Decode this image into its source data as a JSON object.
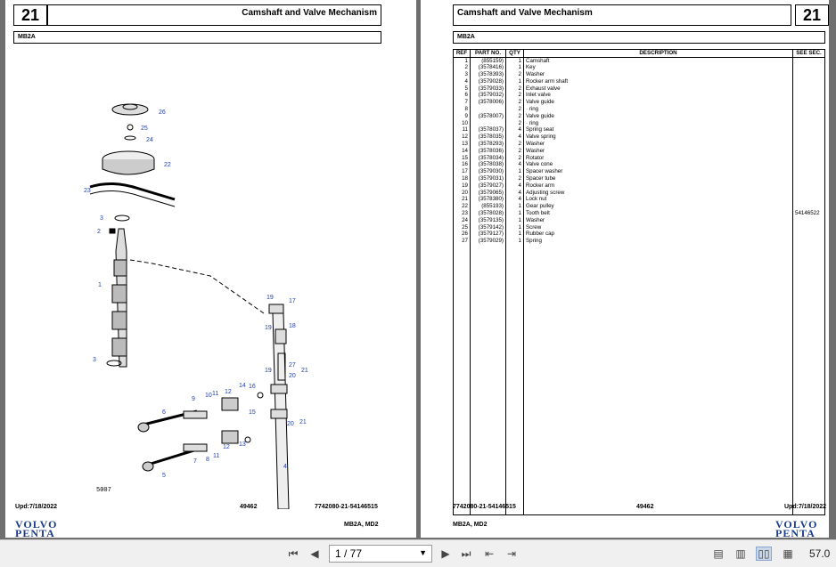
{
  "chapter_number": "21",
  "section_title": "Camshaft and Valve Mechanism",
  "model": "MB2A",
  "diagram": {
    "callouts": [
      "26",
      "25",
      "24",
      "22",
      "23",
      "3",
      "2",
      "1",
      "3",
      "17",
      "19",
      "18",
      "19",
      "27",
      "20",
      "21",
      "19",
      "16",
      "14",
      "12",
      "11",
      "10",
      "9",
      "6",
      "15",
      "20",
      "21",
      "13",
      "12",
      "11",
      "8",
      "7",
      "5",
      "4"
    ],
    "stamp": "5007"
  },
  "parts_table": {
    "headers": [
      "REF",
      "PART NO.",
      "QTY",
      "DESCRIPTION",
      "SEE SEC."
    ],
    "rows": [
      [
        "1",
        "(855159)",
        "1",
        "Camshaft",
        ""
      ],
      [
        "2",
        "(3578416)",
        "1",
        "Key",
        ""
      ],
      [
        "3",
        "(3578393)",
        "2",
        "Washer",
        ""
      ],
      [
        "4",
        "(3579028)",
        "1",
        "Rocker arm shaft",
        ""
      ],
      [
        "5",
        "(3579033)",
        "2",
        "Exhaust valve",
        ""
      ],
      [
        "6",
        "(3579032)",
        "2",
        "Inlet valve",
        ""
      ],
      [
        "7",
        "(3578006)",
        "2",
        "Valve guide",
        ""
      ],
      [
        "8",
        "",
        "2",
        "· ring",
        ""
      ],
      [
        "9",
        "(3578007)",
        "2",
        "Valve guide",
        ""
      ],
      [
        "10",
        "",
        "2",
        "· ring",
        ""
      ],
      [
        "11",
        "(3578037)",
        "4",
        "Spring seat",
        ""
      ],
      [
        "12",
        "(3578035)",
        "4",
        "Valve spring",
        ""
      ],
      [
        "13",
        "(3578293)",
        "2",
        "Washer",
        ""
      ],
      [
        "14",
        "(3578036)",
        "2",
        "Washer",
        ""
      ],
      [
        "15",
        "(3578034)",
        "2",
        "Rotator",
        ""
      ],
      [
        "16",
        "(3578038)",
        "4",
        "Valve cone",
        ""
      ],
      [
        "17",
        "(3579030)",
        "1",
        "Spacer washer",
        ""
      ],
      [
        "18",
        "(3579031)",
        "2",
        "Spacer tube",
        ""
      ],
      [
        "19",
        "(3579027)",
        "4",
        "Rocker arm",
        ""
      ],
      [
        "20",
        "(3579065)",
        "4",
        "Adjusting screw",
        ""
      ],
      [
        "21",
        "(3578380)",
        "4",
        "Lock nut",
        ""
      ],
      [
        "22",
        "(855193)",
        "1",
        "Gear pulley",
        ""
      ],
      [
        "23",
        "(3578028)",
        "1",
        "Tooth belt",
        "54146522"
      ],
      [
        "24",
        "(3579135)",
        "1",
        "Washer",
        ""
      ],
      [
        "25",
        "(3579142)",
        "1",
        "Screw",
        ""
      ],
      [
        "26",
        "(3579127)",
        "1",
        "Rubber cap",
        ""
      ],
      [
        "27",
        "(3579029)",
        "1",
        "Spring",
        ""
      ]
    ]
  },
  "footer": {
    "left_date": "Upd:7/18/2022",
    "left_center": "49462",
    "left_right": "7742080-21-54146515",
    "left_models": "MB2A, MD2",
    "right_left": "7742080-21-54146515",
    "right_center": "49462",
    "right_date": "Upd:7/18/2022",
    "right_models": "MB2A, MD2",
    "logo_line1": "VOLVO",
    "logo_line2": "PENTA"
  },
  "toolbar": {
    "page_indicator": "1 / 77",
    "zoom": "57.0"
  },
  "colors": {
    "callout_blue": "#1f3fb0",
    "viewer_background": "#6f6f6f",
    "toolbar_background": "#f0f0f0",
    "logo_blue": "#1a3c8c"
  }
}
